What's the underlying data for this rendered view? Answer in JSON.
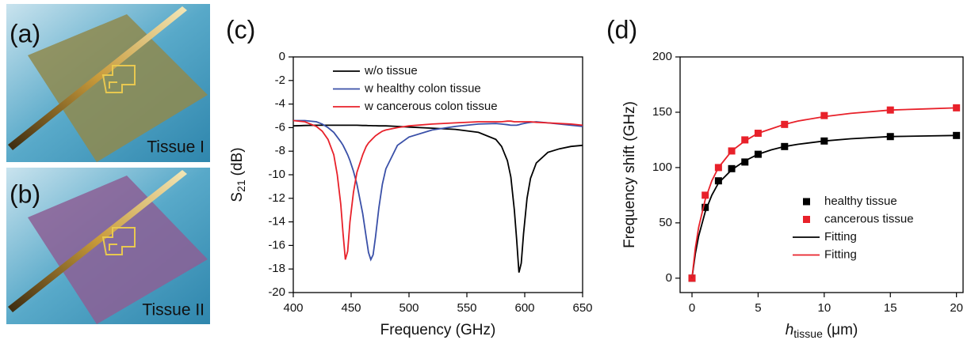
{
  "panels": [
    {
      "label": "(a)",
      "caption": "Tissue I",
      "color": "#8f8a4e"
    },
    {
      "label": "(b)",
      "caption": "Tissue II",
      "color": "#8c5f95"
    }
  ],
  "chart_data": [
    {
      "type": "line",
      "title": "(c)",
      "xlabel": "Frequency (GHz)",
      "ylabel": {
        "main": "S",
        "sub": "21",
        "rest": "(dB)"
      },
      "xlim": [
        400,
        650
      ],
      "ylim": [
        -20,
        0
      ],
      "xticks": [
        400,
        450,
        500,
        550,
        600,
        650
      ],
      "yticks": [
        0,
        -2,
        -4,
        -6,
        -8,
        -10,
        -12,
        -14,
        -16,
        -18,
        -20
      ],
      "legend": "upper-left",
      "x": [
        400,
        410,
        420,
        425,
        430,
        435,
        438,
        441,
        443,
        445,
        447,
        449,
        452,
        455,
        460,
        463,
        465,
        467,
        469,
        471,
        474,
        477,
        480,
        490,
        500,
        520,
        540,
        560,
        575,
        580,
        585,
        588,
        591,
        593,
        595,
        597,
        599,
        602,
        605,
        610,
        620,
        630,
        640,
        650
      ],
      "series": [
        {
          "name": "w/o tissue",
          "color": "#000000",
          "kind": "line",
          "values": [
            -5.85,
            -5.82,
            -5.8,
            -5.8,
            -5.8,
            -5.8,
            -5.8,
            -5.8,
            -5.8,
            -5.8,
            -5.8,
            -5.8,
            -5.8,
            -5.8,
            -5.82,
            -5.82,
            -5.83,
            -5.83,
            -5.84,
            -5.84,
            -5.85,
            -5.85,
            -5.85,
            -5.9,
            -5.95,
            -6.05,
            -6.15,
            -6.4,
            -7.0,
            -7.6,
            -8.8,
            -10.2,
            -13,
            -15.5,
            -18.3,
            -17.5,
            -15,
            -12,
            -10.3,
            -9,
            -8.1,
            -7.8,
            -7.6,
            -7.5
          ]
        },
        {
          "name": "w healthy colon tissue",
          "color": "#3a50a8",
          "kind": "line",
          "values": [
            -5.4,
            -5.4,
            -5.5,
            -5.7,
            -6.0,
            -6.4,
            -6.8,
            -7.2,
            -7.5,
            -7.9,
            -8.3,
            -8.8,
            -9.7,
            -10.8,
            -13.3,
            -15.3,
            -16.6,
            -17.2,
            -16.8,
            -15.3,
            -12.8,
            -10.8,
            -9.5,
            -7.5,
            -6.8,
            -6.2,
            -5.9,
            -5.7,
            -5.65,
            -5.7,
            -5.75,
            -5.8,
            -5.8,
            -5.8,
            -5.75,
            -5.7,
            -5.65,
            -5.6,
            -5.55,
            -5.5,
            -5.6,
            -5.7,
            -5.8,
            -5.9
          ]
        },
        {
          "name": "w cancerous colon tissue",
          "color": "#e8212a",
          "kind": "line",
          "values": [
            -5.4,
            -5.5,
            -5.9,
            -6.3,
            -7.0,
            -8.3,
            -10,
            -12.5,
            -15,
            -17.2,
            -16.5,
            -14,
            -11.5,
            -9.8,
            -8.3,
            -7.6,
            -7.3,
            -7.1,
            -6.9,
            -6.7,
            -6.5,
            -6.3,
            -6.2,
            -6.0,
            -5.85,
            -5.7,
            -5.6,
            -5.5,
            -5.5,
            -5.5,
            -5.45,
            -5.45,
            -5.5,
            -5.5,
            -5.5,
            -5.5,
            -5.5,
            -5.5,
            -5.5,
            -5.55,
            -5.6,
            -5.65,
            -5.7,
            -5.8
          ]
        }
      ]
    },
    {
      "type": "scatter",
      "title": "(d)",
      "xlabel": {
        "main": "h",
        "sub": "tissue",
        "rest": "(μm)"
      },
      "ylabel": "Frequency shift (GHz)",
      "xlim": [
        -0.9,
        20.5
      ],
      "ylim": [
        -13,
        200
      ],
      "xticks": [
        0,
        5,
        10,
        15,
        20
      ],
      "yticks": [
        0,
        50,
        100,
        150,
        200
      ],
      "legend": "lower-right",
      "series": [
        {
          "name": "healthy tissue",
          "color": "#000000",
          "kind": "scatter",
          "x": [
            0,
            1,
            2,
            3,
            4,
            5,
            7,
            10,
            15,
            20
          ],
          "values": [
            0,
            64,
            88,
            99,
            105,
            112,
            119,
            124,
            128,
            129
          ]
        },
        {
          "name": "cancerous tissue",
          "color": "#e8212a",
          "kind": "scatter",
          "x": [
            0,
            1,
            2,
            3,
            4,
            5,
            7,
            10,
            15,
            20
          ],
          "values": [
            0,
            75,
            100,
            115,
            125,
            131,
            139,
            147,
            152,
            154
          ]
        },
        {
          "name": "Fitting",
          "color": "#000000",
          "kind": "line",
          "x": [
            0,
            0.25,
            0.5,
            1,
            1.5,
            2,
            3,
            4,
            5,
            6,
            7,
            8,
            10,
            12,
            15,
            17.5,
            20
          ],
          "values": [
            0,
            22,
            38,
            60,
            75,
            86,
            98,
            106,
            112,
            116,
            119,
            121,
            124,
            126,
            128,
            128.5,
            129
          ]
        },
        {
          "name": "Fitting",
          "color": "#e8212a",
          "kind": "line",
          "x": [
            0,
            0.25,
            0.5,
            1,
            1.5,
            2,
            3,
            4,
            5,
            6,
            7,
            8,
            10,
            12,
            15,
            17.5,
            20
          ],
          "values": [
            0,
            27,
            46,
            71,
            88,
            100,
            115,
            124,
            131,
            135,
            139,
            142,
            146,
            149,
            152,
            153,
            154
          ]
        }
      ]
    }
  ]
}
